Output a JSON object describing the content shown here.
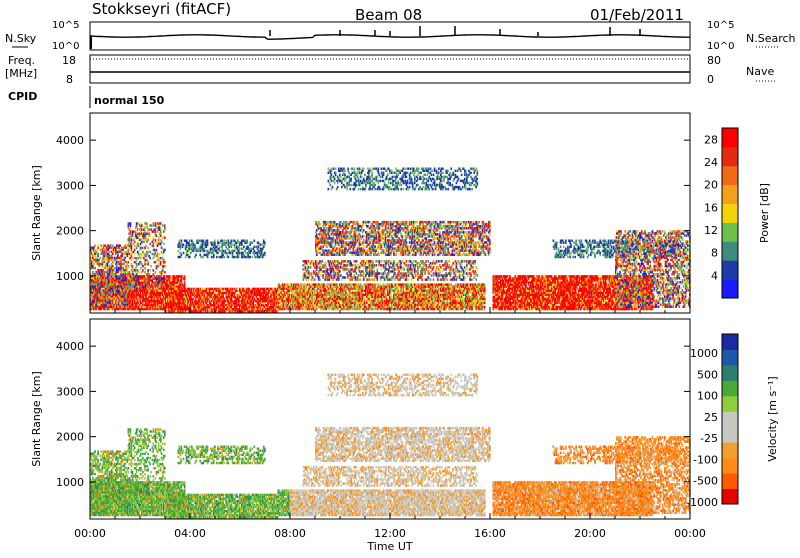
{
  "header": {
    "station": "Stokkseyri (fitACF)",
    "beam": "Beam 08",
    "date": "01/Feb/2011"
  },
  "strip_nsky": {
    "left_label": "N.Sky",
    "left_ticks": [
      "10^5",
      "10^0"
    ],
    "right_label": "N.Search",
    "right_ticks": [
      "10^5",
      "10^0"
    ]
  },
  "strip_freq": {
    "left_label_1": "Freq.",
    "left_label_2": "[MHz]",
    "left_ticks": [
      "18",
      "8"
    ],
    "right_label": "Nave",
    "right_ticks": [
      "80",
      "0"
    ]
  },
  "cpid": {
    "label": "CPID",
    "value": "normal 150"
  },
  "colors": {
    "power_scale": [
      "#1a1aff",
      "#1e3ca8",
      "#3f8c7c",
      "#6fbf4e",
      "#f3d40b",
      "#f5a01a",
      "#f06a18",
      "#e52a12",
      "#ff0000"
    ],
    "velocity_scale": [
      "#e60000",
      "#ff5a00",
      "#ff8c1a",
      "#f0a030",
      "#c8c8c0",
      "#c8c8c0",
      "#8ccf3a",
      "#4aa838",
      "#2c7f6a",
      "#1d57a8",
      "#1a2aa0"
    ]
  },
  "chart_data": [
    {
      "type": "heatmap",
      "title": "",
      "xlabel": "",
      "ylabel": "Slant Range [km]",
      "x_ticks": [
        "00:00",
        "04:00",
        "08:00",
        "12:00",
        "16:00",
        "20:00",
        "00:00"
      ],
      "x_range_hours": [
        0,
        24
      ],
      "y_ticks": [
        "1000",
        "2000",
        "3000",
        "4000"
      ],
      "ylim": [
        180,
        4600
      ],
      "colorbar": {
        "label": "Power [dB]",
        "ticks": [
          "4",
          "8",
          "12",
          "16",
          "20",
          "24",
          "28"
        ],
        "range": [
          0,
          30
        ]
      }
    },
    {
      "type": "heatmap",
      "title": "",
      "xlabel": "Time UT",
      "ylabel": "Slant Range [km]",
      "x_ticks": [
        "00:00",
        "04:00",
        "08:00",
        "12:00",
        "16:00",
        "20:00",
        "00:00"
      ],
      "x_range_hours": [
        0,
        24
      ],
      "y_ticks": [
        "1000",
        "2000",
        "3000",
        "4000"
      ],
      "ylim": [
        180,
        4600
      ],
      "colorbar": {
        "label": "Velocity [m s⁻¹]",
        "ticks": [
          "1000",
          "500",
          "100",
          "25",
          "-25",
          "-100",
          "-500",
          "-1000"
        ]
      }
    }
  ]
}
